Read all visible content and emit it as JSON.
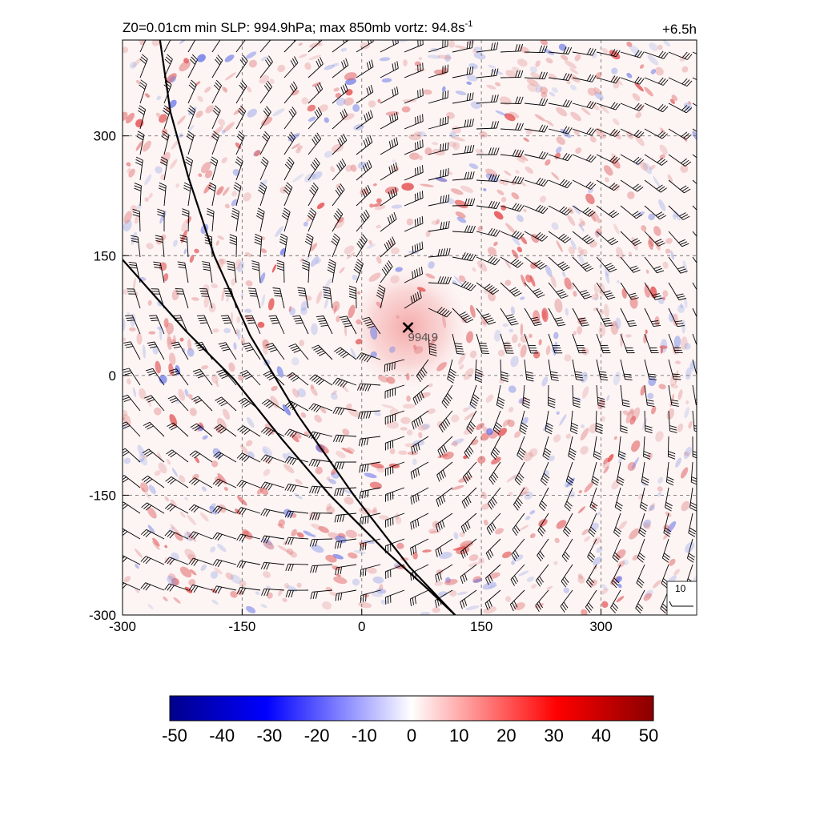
{
  "header": {
    "title": "Z0=0.01cm  min SLP: 994.9hPa; max 850mb vortz:  94.8s",
    "title_sup": "-1",
    "time_label": "+6.5h"
  },
  "map": {
    "x_range": [
      -300,
      420
    ],
    "y_range": [
      -300,
      420
    ],
    "x_ticks": [
      -300,
      -150,
      0,
      150,
      300
    ],
    "x_tick_labels": [
      "-300",
      "-150",
      "0",
      "150",
      "300"
    ],
    "y_ticks": [
      -300,
      -150,
      0,
      150,
      300
    ],
    "y_tick_labels": [
      "-300",
      "-150",
      "0",
      "150",
      "300"
    ],
    "grid": true,
    "storm_center": {
      "x": 58,
      "y": 60,
      "label": "994.9"
    },
    "coastlines": [
      [
        [
          -253,
          420
        ],
        [
          -240,
          330
        ],
        [
          -218,
          250
        ],
        [
          -185,
          150
        ],
        [
          -140,
          50
        ],
        [
          -80,
          -50
        ],
        [
          -10,
          -150
        ],
        [
          60,
          -240
        ],
        [
          117,
          -300
        ]
      ],
      [
        [
          -300,
          145
        ],
        [
          -260,
          100
        ],
        [
          -220,
          55
        ],
        [
          -160,
          -5
        ],
        [
          -100,
          -80
        ],
        [
          -40,
          -150
        ],
        [
          30,
          -220
        ],
        [
          80,
          -265
        ],
        [
          117,
          -300
        ]
      ]
    ],
    "wind_key": {
      "label": "10"
    }
  },
  "colorbar": {
    "ticks": [
      -50,
      -40,
      -30,
      -20,
      -10,
      0,
      10,
      20,
      30,
      40,
      50
    ],
    "tick_labels": [
      "-50",
      "-40",
      "-30",
      "-20",
      "-10",
      "0",
      "10",
      "20",
      "30",
      "40",
      "50"
    ],
    "colors": [
      "#00008b",
      "#0000ff",
      "#ffffff",
      "#ff0000",
      "#8b0000"
    ]
  }
}
